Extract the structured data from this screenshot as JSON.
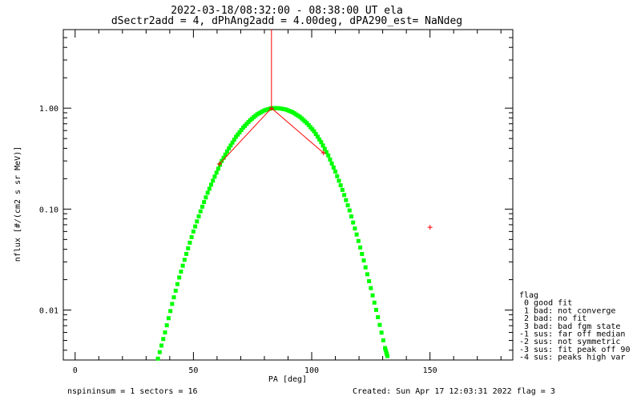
{
  "chart_data": {
    "type": "scatter",
    "title_line1": "2022-03-18/08:32:00 - 08:38:00 UT ela",
    "title_line2": "dSectr2add = 4, dPhAng2add = 4.00deg, dPA290_est=    NaNdeg",
    "xlabel": "PA [deg]",
    "ylabel": "nflux [#/(cm2 s sr MeV)]",
    "x_scale": "linear",
    "y_scale": "log",
    "xlim": [
      -5,
      185
    ],
    "ylim": [
      0.0032,
      6.0
    ],
    "x_ticks": [
      0,
      50,
      100,
      150
    ],
    "y_ticks": [
      {
        "value": 0.01,
        "label": "0.01"
      },
      {
        "value": 0.1,
        "label": "0.10"
      },
      {
        "value": 1.0,
        "label": "1.00"
      }
    ],
    "grid": false,
    "series": [
      {
        "style": "red-plus-line",
        "color": "#ff0000",
        "points": [
          [
            61,
            0.28
          ],
          [
            83,
            1.0
          ],
          [
            105,
            0.36
          ]
        ],
        "vertical_line_x": 83
      },
      {
        "style": "red-plus",
        "color": "#ff0000",
        "points": [
          [
            150,
            0.066
          ]
        ]
      },
      {
        "style": "green-fit-curve",
        "color": "#00ff00",
        "center": 84,
        "peak": 1.0,
        "points": [
          [
            35,
            0.0033
          ],
          [
            38,
            0.006
          ],
          [
            41,
            0.0115
          ],
          [
            44,
            0.021
          ],
          [
            47,
            0.036
          ],
          [
            50,
            0.06
          ],
          [
            53,
            0.095
          ],
          [
            56,
            0.145
          ],
          [
            59,
            0.21
          ],
          [
            62,
            0.3
          ],
          [
            65,
            0.4
          ],
          [
            68,
            0.52
          ],
          [
            71,
            0.64
          ],
          [
            74,
            0.76
          ],
          [
            77,
            0.87
          ],
          [
            80,
            0.95
          ],
          [
            83,
            1.0
          ],
          [
            86,
            1.0
          ],
          [
            89,
            0.97
          ],
          [
            92,
            0.91
          ],
          [
            95,
            0.82
          ],
          [
            98,
            0.71
          ],
          [
            101,
            0.59
          ],
          [
            104,
            0.46
          ],
          [
            107,
            0.34
          ],
          [
            110,
            0.235
          ],
          [
            113,
            0.155
          ],
          [
            116,
            0.097
          ],
          [
            119,
            0.056
          ],
          [
            122,
            0.031
          ],
          [
            125,
            0.0165
          ],
          [
            128,
            0.0085
          ],
          [
            131,
            0.0042
          ],
          [
            132,
            0.0035
          ]
        ]
      }
    ],
    "legend": {
      "position": "bottom-right",
      "title": "flag",
      "items": [
        " 0 good fit",
        " 1 bad: not converge",
        " 2 bad: no fit",
        " 3 bad: bad fgm state",
        "-1 sus: far off median",
        "-2 sus: not symmetric",
        "-3 sus: fit peak off 90",
        "-4 sus: peaks high var"
      ]
    },
    "footer_left": "nspininsum =  1  sectors = 16",
    "footer_right": "Created: Sun Apr 17 12:03:31 2022   flag = 3"
  }
}
